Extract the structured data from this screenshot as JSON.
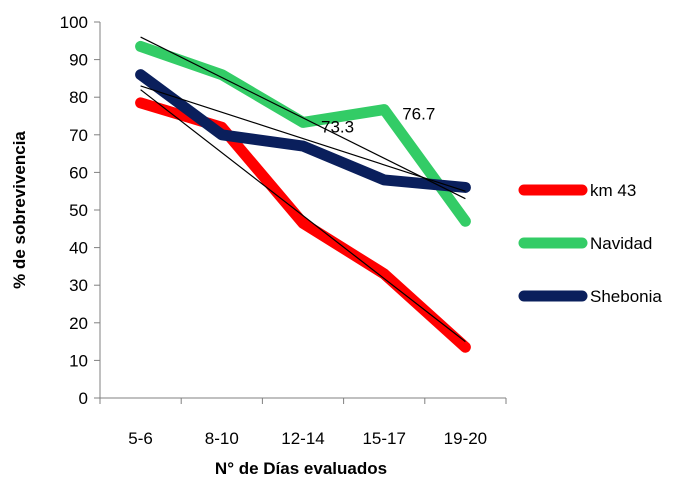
{
  "chart_data": {
    "type": "line",
    "xlabel": "N° de Días evaluados",
    "ylabel": "% de sobrevivencia",
    "categories": [
      "5-6",
      "8-10",
      "12-14",
      "15-17",
      "19-20"
    ],
    "ylim": [
      0,
      100
    ],
    "yticks": [
      0,
      10,
      20,
      30,
      40,
      50,
      60,
      70,
      80,
      90,
      100
    ],
    "grid": false,
    "legend_position": "right",
    "series": [
      {
        "name": "km 43",
        "color": "#ff0000",
        "values": [
          78.5,
          72,
          46.5,
          33,
          13.5
        ],
        "trend": [
          82,
          15
        ]
      },
      {
        "name": "Navidad",
        "color": "#33cc66",
        "values": [
          93.5,
          86,
          73.3,
          76.7,
          47
        ],
        "trend": [
          96,
          53
        ]
      },
      {
        "name": "Shebonia",
        "color": "#0a1f5c",
        "values": [
          86,
          70,
          67,
          58,
          56
        ],
        "trend": [
          83,
          55
        ]
      }
    ],
    "data_labels": [
      {
        "series": 1,
        "index": 2,
        "text": "73.3"
      },
      {
        "series": 1,
        "index": 3,
        "text": "76.7"
      }
    ]
  }
}
